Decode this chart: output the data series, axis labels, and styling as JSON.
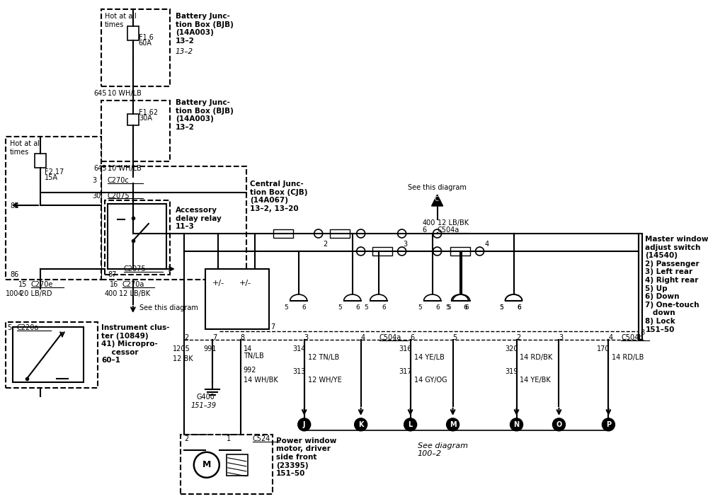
{
  "bg_color": "#ffffff",
  "lw": 1.5,
  "lw_thick": 2.0,
  "components": {
    "bjb1_label": "Battery Junc-\ntion Box (BJB)\n(14A003)\n13–2",
    "bjb2_label": "Battery Junc-\ntion Box (BJB)\n(14A003)\n13–2",
    "cjb_label": "Central Junc-\ntion Box (CJB)\n(14A067)\n13–2, 13–20",
    "relay_label": "Accessory\ndelay relay\n11–3",
    "inst_label": "Instrument clus-\nter (10849)\n41) Micropro-\n    cessor\n60–1",
    "master_label": "Master window\nadjust switch\n(14540)\n2) Passenger\n3) Left rear\n4) Right rear\n5) Up\n6) Down\n7) One-touch\n   down\n8) Lock\n151–50",
    "motor_label": "Power window\nmotor, driver\nside front\n(23395)\n151–50"
  }
}
